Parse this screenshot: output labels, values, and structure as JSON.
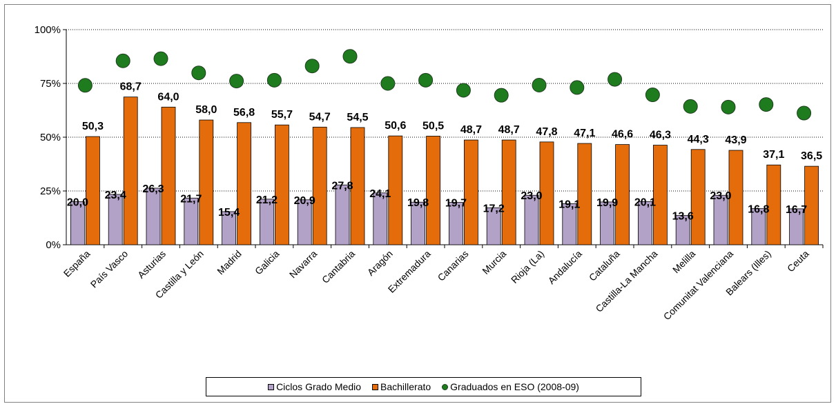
{
  "chart_data": {
    "type": "bar",
    "title": "",
    "xlabel": "",
    "ylabel": "",
    "ylim": [
      0,
      100
    ],
    "yticks": [
      0,
      25,
      50,
      75,
      100
    ],
    "ytick_labels": [
      "0%",
      "25%",
      "50%",
      "75%",
      "100%"
    ],
    "grid": "horizontal dotted",
    "legend_position": "bottom",
    "categories": [
      "España",
      "País Vasco",
      "Asturias",
      "Castilla y León",
      "Madrid",
      "Galicia",
      "Navarra",
      "Cantabria",
      "Aragón",
      "Extremadura",
      "Canarias",
      "Murcia",
      "Rioja (La)",
      "Andalucía",
      "Cataluña",
      "Castilla-La Mancha",
      "Melilla",
      "Comunitat Valenciana",
      "Balears (Illes)",
      "Ceuta"
    ],
    "series": [
      {
        "name": "Ciclos Grado Medio",
        "type": "bar",
        "color": "#b3a2c7",
        "values": [
          20.0,
          23.4,
          26.3,
          21.7,
          15.4,
          21.2,
          20.9,
          27.8,
          24.1,
          19.8,
          19.7,
          17.2,
          23.0,
          19.1,
          19.9,
          20.1,
          13.6,
          23.0,
          16.8,
          16.7
        ],
        "labels": [
          "20,0",
          "23,4",
          "26,3",
          "21,7",
          "15,4",
          "21,2",
          "20,9",
          "27,8",
          "24,1",
          "19,8",
          "19,7",
          "17,2",
          "23,0",
          "19,1",
          "19,9",
          "20,1",
          "13,6",
          "23,0",
          "16,8",
          "16,7"
        ]
      },
      {
        "name": "Bachillerato",
        "type": "bar",
        "color": "#e46c0a",
        "values": [
          50.3,
          68.7,
          64.0,
          58.0,
          56.8,
          55.7,
          54.7,
          54.5,
          50.6,
          50.5,
          48.7,
          48.7,
          47.8,
          47.1,
          46.6,
          46.3,
          44.3,
          43.9,
          37.1,
          36.5
        ],
        "labels": [
          "50,3",
          "68,7",
          "64,0",
          "58,0",
          "56,8",
          "55,7",
          "54,7",
          "54,5",
          "50,6",
          "50,5",
          "48,7",
          "48,7",
          "47,8",
          "47,1",
          "46,6",
          "46,3",
          "44,3",
          "43,9",
          "37,1",
          "36,5"
        ]
      },
      {
        "name": "Graduados en ESO (2008-09)",
        "type": "scatter",
        "color": "#1e7b1e",
        "values": [
          74.1,
          85.5,
          86.5,
          79.9,
          76.1,
          76.5,
          83.1,
          87.6,
          75.0,
          76.5,
          71.8,
          69.5,
          74.2,
          73.1,
          76.9,
          69.7,
          64.3,
          64.0,
          65.2,
          61.2
        ]
      }
    ]
  }
}
